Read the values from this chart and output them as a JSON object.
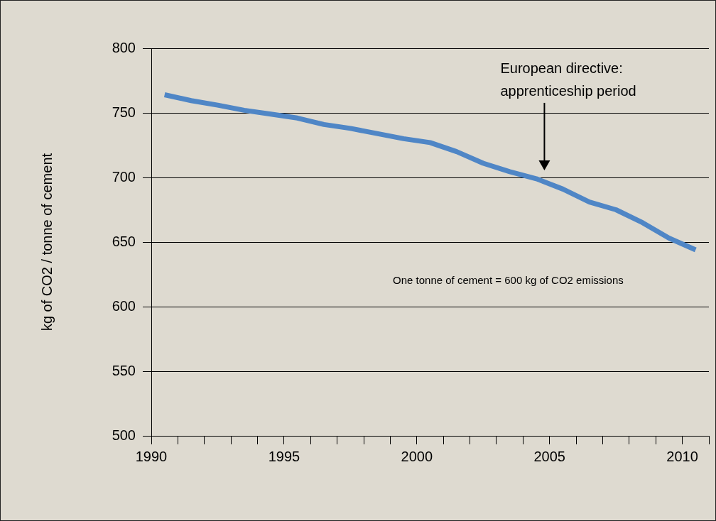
{
  "chart_data": {
    "type": "line",
    "ylabel": "kg of CO2 / tonne of cement",
    "x": [
      1990.5,
      1991.5,
      1992.5,
      1993.5,
      1994.5,
      1995.5,
      1996.5,
      1997.5,
      1998.5,
      1999.5,
      2000.5,
      2001.5,
      2002.5,
      2003.5,
      2004.5,
      2005.5,
      2006.5,
      2007.5,
      2008.5,
      2009.5,
      2010.5
    ],
    "series": [
      {
        "color": "#4f86c6",
        "values": [
          764,
          759.5,
          756,
          752,
          749,
          746,
          741,
          738,
          734,
          730,
          727,
          720,
          711,
          704.5,
          699,
          691,
          681,
          675,
          665,
          653,
          644
        ]
      }
    ],
    "xlim": [
      1990,
      2011
    ],
    "xticks": [
      1990,
      {
        "value": 1991,
        "label": null
      },
      {
        "value": 1992,
        "label": null
      },
      {
        "value": 1993,
        "label": null
      },
      {
        "value": 1994,
        "label": null
      },
      1995,
      {
        "value": 1996,
        "label": null
      },
      {
        "value": 1997,
        "label": null
      },
      {
        "value": 1998,
        "label": null
      },
      {
        "value": 1999,
        "label": null
      },
      2000,
      {
        "value": 2001,
        "label": null
      },
      {
        "value": 2002,
        "label": null
      },
      {
        "value": 2003,
        "label": null
      },
      {
        "value": 2004,
        "label": null
      },
      2005,
      {
        "value": 2006,
        "label": null
      },
      {
        "value": 2007,
        "label": null
      },
      {
        "value": 2008,
        "label": null
      },
      {
        "value": 2009,
        "label": null
      },
      2010,
      {
        "value": 2011,
        "label": null
      }
    ],
    "ylim": [
      500,
      800
    ],
    "yticks": [
      500,
      550,
      600,
      650,
      700,
      750,
      800
    ],
    "grid": "y",
    "legend": false,
    "marker": "none",
    "line_style": "solid",
    "annotations": [
      "European directive:\napprenticeship period",
      "One tonne of cement = 600 kg of CO2 emissions"
    ]
  }
}
